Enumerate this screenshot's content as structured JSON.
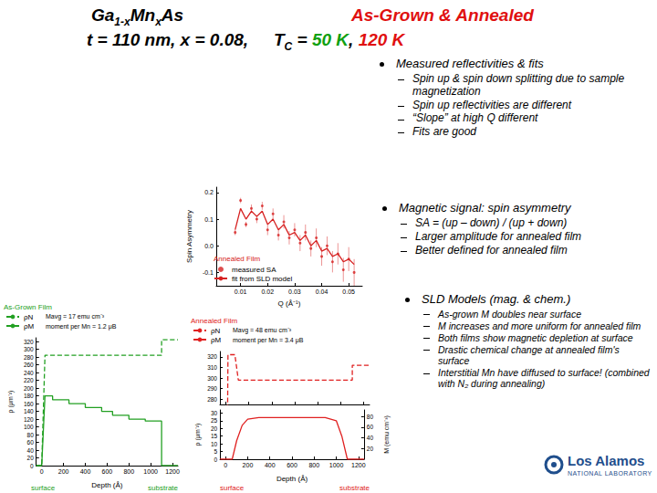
{
  "slide": {
    "title_lines": [
      {
        "left": [
          {
            "text": "Ga"
          },
          {
            "text": "1-x",
            "sub": true
          },
          {
            "text": "Mn"
          },
          {
            "text": "x",
            "sub": true
          },
          {
            "text": "As"
          }
        ],
        "right": [
          {
            "text": "As-Grown & Annealed",
            "color": "#e01010"
          }
        ]
      },
      {
        "left": [
          {
            "text": "t = 110 nm, x = 0.08,"
          }
        ],
        "right": [
          {
            "text": "T"
          },
          {
            "text": "C",
            "sub": true
          },
          {
            "text": " = "
          },
          {
            "text": "50 K",
            "color": "#10a010"
          },
          {
            "text": ", "
          },
          {
            "text": "120 K",
            "color": "#e01010"
          }
        ]
      }
    ],
    "bullets": [
      {
        "text": "Measured reflectivities & fits",
        "items": [
          "Spin up & spin down splitting due to sample magnetization",
          "Spin up reflectivities are different",
          "“Slope” at high Q different",
          "Fits are good"
        ]
      },
      {
        "text": "Magnetic signal: spin asymmetry",
        "items": [
          "SA = (up – down) / (up + down)",
          "Larger amplitude for annealed film",
          "Better defined for annealed film"
        ]
      },
      {
        "text": "SLD Models (mag. & chem.)",
        "items": [
          "As-grown M doubles near surface",
          "M increases and more uniform for annealed film",
          "Both films show magnetic depletion at surface",
          "Drastic chemical change at annealed film's surface",
          "Interstitial Mn have diffused to surface! (combined with N₂ during annealing)"
        ]
      }
    ],
    "logo": {
      "name": "Los Alamos",
      "subtitle": "NATIONAL LABORATORY"
    }
  },
  "chart_data": [
    {
      "type": "scatter",
      "title": "Annealed Film",
      "x_label": "Q (Å⁻¹)",
      "y_label": "Spin Asymmetry",
      "legend": "lower left",
      "grid": false,
      "xlim": [
        0.001,
        0.055
      ],
      "xticks": [
        0.01,
        0.02,
        0.03,
        0.04,
        0.05
      ],
      "ylim": [
        -0.15,
        0.22
      ],
      "yticks": [
        -0.1,
        {
          "value": 0,
          "label": "0.0"
        },
        0.1,
        0.2
      ],
      "x": [
        0.008,
        0.01,
        0.012,
        0.014,
        0.016,
        0.018,
        0.02,
        0.022,
        0.024,
        0.026,
        0.028,
        0.03,
        0.032,
        0.034,
        0.036,
        0.038,
        0.04,
        0.042,
        0.044,
        0.046,
        0.048,
        0.05,
        0.052
      ],
      "series": [
        {
          "name": "measured SA",
          "type": "scatter",
          "marker": "circle",
          "color": "#d62020",
          "values": [
            0.05,
            0.17,
            0.08,
            0.14,
            0.1,
            0.15,
            0.06,
            0.12,
            0.04,
            0.09,
            0.03,
            0.06,
            0.01,
            0.05,
            -0.01,
            0.03,
            -0.04,
            0.0,
            -0.06,
            -0.03,
            -0.09,
            -0.05,
            -0.1
          ],
          "errors": [
            0.01,
            0.01,
            0.01,
            0.015,
            0.015,
            0.015,
            0.02,
            0.02,
            0.02,
            0.025,
            0.025,
            0.025,
            0.03,
            0.03,
            0.03,
            0.035,
            0.035,
            0.035,
            0.04,
            0.04,
            0.045,
            0.045,
            0.05
          ]
        },
        {
          "name": "fit from SLD model",
          "type": "line",
          "line_style": "solid",
          "color": "#d62020",
          "values": [
            0.06,
            0.14,
            0.1,
            0.13,
            0.11,
            0.13,
            0.08,
            0.1,
            0.06,
            0.08,
            0.04,
            0.05,
            0.02,
            0.04,
            0.0,
            0.02,
            -0.02,
            -0.01,
            -0.04,
            -0.03,
            -0.06,
            -0.05,
            -0.07
          ]
        }
      ]
    },
    {
      "type": "line",
      "title": "As-Grown Film",
      "x_label": "Depth (Å)",
      "y_label": "ρ (μm⁻²)",
      "x_label_left": "surface",
      "x_label_right": "substrate",
      "annotations": [
        "Mavg = 17 emu cm⁻³",
        "moment per Mn = 1.2 μB"
      ],
      "legend": "upper left",
      "grid": false,
      "xlim": [
        -50,
        1250
      ],
      "xticks": [
        0,
        200,
        400,
        600,
        800,
        1000,
        1200
      ],
      "ylim": [
        0,
        330
      ],
      "yticks": [
        0,
        20,
        40,
        60,
        80,
        100,
        120,
        140,
        160,
        180,
        200,
        220,
        240,
        260,
        280,
        300,
        320
      ],
      "series": [
        {
          "name": "ρN",
          "color": "#22a022",
          "line_style": "dashed",
          "x": [
            -50,
            0,
            30,
            1100,
            1100,
            1250
          ],
          "values": [
            0,
            0,
            285,
            285,
            325,
            325
          ]
        },
        {
          "name": "ρM",
          "color": "#22a022",
          "line_style": "solid",
          "x": [
            -50,
            0,
            30,
            100,
            100,
            250,
            250,
            400,
            400,
            550,
            550,
            650,
            650,
            800,
            800,
            950,
            950,
            1100,
            1100,
            1250
          ],
          "values": [
            0,
            0,
            180,
            180,
            170,
            170,
            160,
            160,
            150,
            150,
            140,
            140,
            130,
            130,
            120,
            120,
            115,
            115,
            0,
            0
          ]
        }
      ]
    },
    {
      "type": "line",
      "title": "Annealed Film",
      "x_label": "Depth (Å)",
      "y_label": "ρ (μm⁻²)",
      "y2_label": "M (emu cm⁻³)",
      "x_label_left": "surface",
      "x_label_right": "substrate",
      "annotations": [
        "Mavg = 48 emu cm⁻³",
        "moment per Mn = 3.4 μB"
      ],
      "legend": "upper left",
      "grid": false,
      "xlim": [
        -50,
        1250
      ],
      "xticks": [
        0,
        200,
        400,
        600,
        800,
        1000,
        1200
      ],
      "panels": [
        {
          "ylim": [
            275,
            325
          ],
          "yticks": [
            280,
            290,
            300,
            310,
            320
          ],
          "series": [
            {
              "name": "ρN",
              "color": "#e02020",
              "line_style": "dashed",
              "x": [
                -50,
                0,
                20,
                80,
                110,
                1100,
                1100,
                1250
              ],
              "values": [
                0,
                0,
                322,
                322,
                298,
                298,
                312,
                312
              ]
            }
          ]
        },
        {
          "ylim": [
            0,
            32
          ],
          "yticks": [
            0,
            5,
            10,
            15,
            20,
            25,
            30
          ],
          "y2lim": [
            0,
            92
          ],
          "y2ticks": [
            20,
            40,
            60,
            80
          ],
          "series": [
            {
              "name": "ρM",
              "color": "#e02020",
              "line_style": "solid",
              "x": [
                -50,
                60,
                100,
                150,
                200,
                300,
                900,
                1000,
                1050,
                1100,
                1250
              ],
              "values": [
                0,
                0,
                12,
                22,
                26,
                27,
                27,
                25,
                15,
                0,
                0
              ]
            }
          ]
        }
      ]
    }
  ]
}
